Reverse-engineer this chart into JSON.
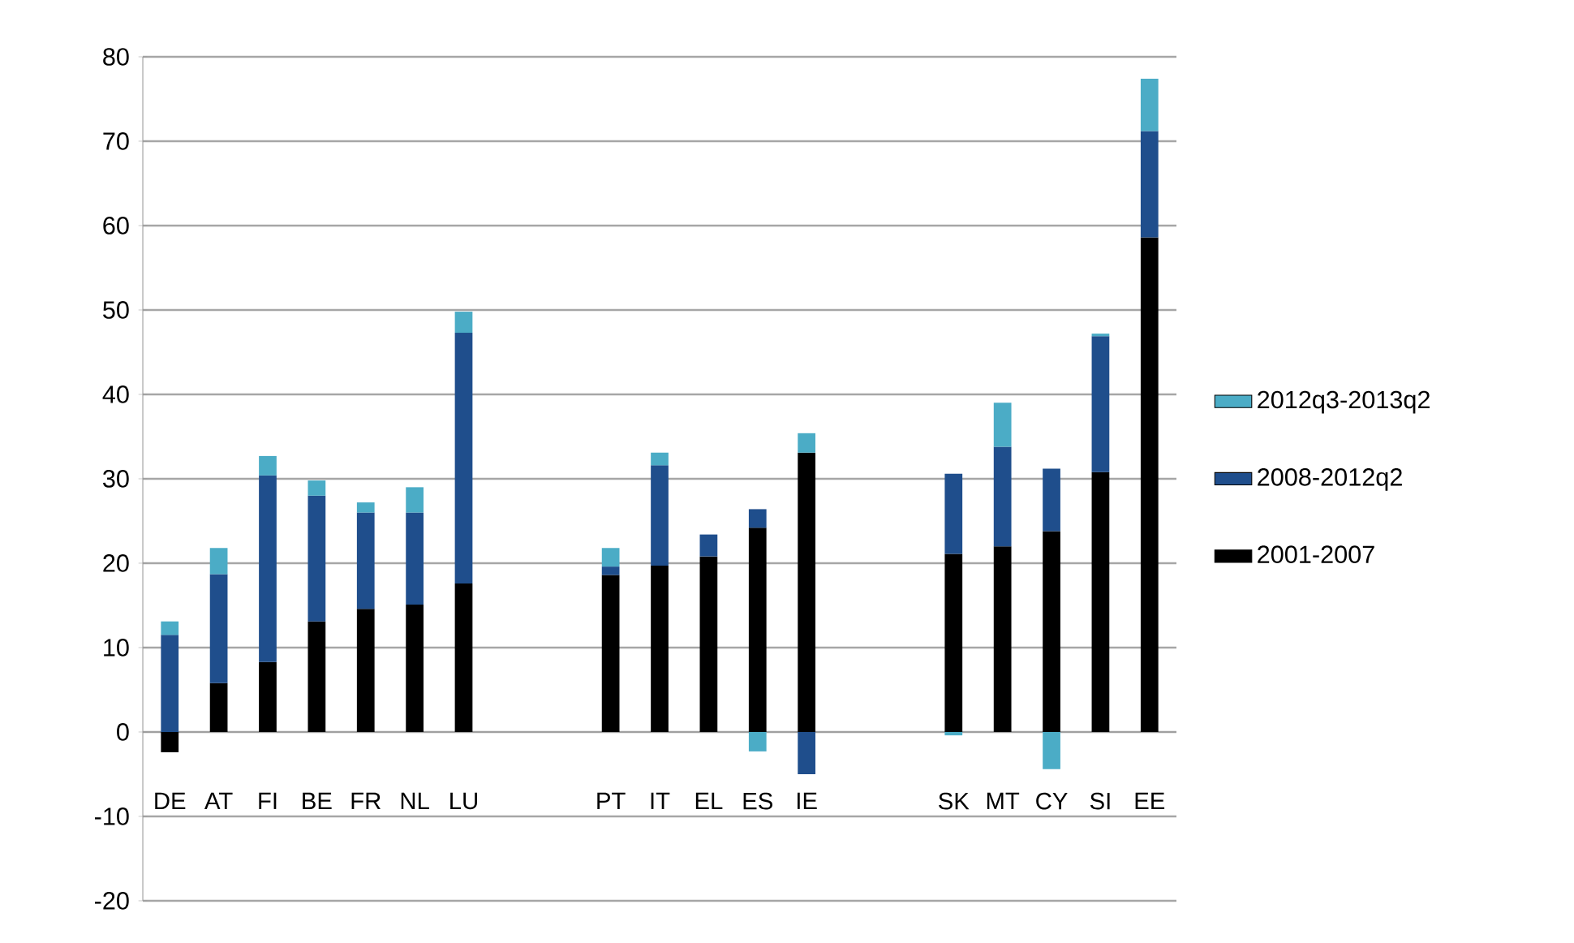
{
  "chart_data": {
    "type": "bar",
    "stacked": true,
    "categories": [
      "DE",
      "AT",
      "FI",
      "BE",
      "FR",
      "NL",
      "LU",
      null,
      null,
      "PT",
      "IT",
      "EL",
      "ES",
      "IE",
      null,
      null,
      "SK",
      "MT",
      "CY",
      "SI",
      "EE"
    ],
    "series": [
      {
        "name": "2001-2007",
        "color": "#000000",
        "values": [
          -2.4,
          5.8,
          8.3,
          13.1,
          14.6,
          15.1,
          17.6,
          null,
          null,
          18.6,
          19.7,
          20.8,
          24.2,
          33.1,
          null,
          null,
          21.1,
          22.0,
          23.8,
          30.8,
          58.6
        ]
      },
      {
        "name": "2008-2012q2",
        "color": "#1f4e8c",
        "values": [
          11.5,
          12.9,
          22.1,
          14.9,
          11.4,
          10.9,
          29.7,
          null,
          null,
          1.0,
          11.9,
          2.6,
          2.2,
          -5.0,
          null,
          null,
          9.5,
          11.8,
          7.4,
          16.1,
          12.6
        ]
      },
      {
        "name": "2012q3-2013q2",
        "color": "#4bacc6",
        "values": [
          1.6,
          3.1,
          2.3,
          1.8,
          1.2,
          3.0,
          2.5,
          null,
          null,
          2.2,
          1.5,
          0,
          -2.3,
          2.3,
          null,
          null,
          -0.4,
          5.2,
          -4.4,
          0.3,
          6.2
        ]
      }
    ],
    "ylim": [
      -20,
      80
    ],
    "yticks": [
      -20,
      -10,
      0,
      10,
      20,
      30,
      40,
      50,
      60,
      70,
      80
    ],
    "grid": "y",
    "legend": "right"
  }
}
